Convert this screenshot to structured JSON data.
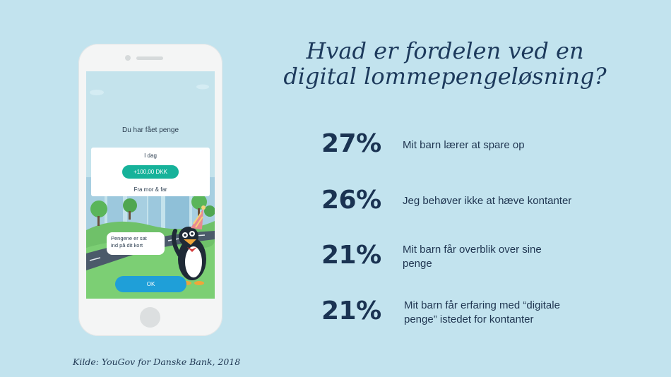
{
  "headline": {
    "line1": "Hvad er fordelen ved en",
    "line2": "digital lommepengeløsning?"
  },
  "phone_screen": {
    "title": "Du har fået penge",
    "card": {
      "date": "I dag",
      "amount": "+100,00 DKK",
      "from": "Fra mor & far"
    },
    "speech_bubble": {
      "line1": "Pengene er sat",
      "line2": "ind på dit kort"
    },
    "ok_button": "OK"
  },
  "stats": [
    {
      "percent": "27%",
      "label_line1": "Mit barn lærer at spare op",
      "label_line2": ""
    },
    {
      "percent": "26%",
      "label_line1": "Jeg behøver ikke at hæve kontanter",
      "label_line2": ""
    },
    {
      "percent": "21%",
      "label_line1": "Mit barn får overblik over sine",
      "label_line2": "penge"
    },
    {
      "percent": "21%",
      "label_line1": "Mit barn får erfaring med “digitale",
      "label_line2": "penge” istedet for kontanter"
    }
  ],
  "source": "Kilde: YouGov for Danske Bank, 2018",
  "colors": {
    "background": "#c2e3ee",
    "headline": "#1d3a5c",
    "accent_green": "#16b29a",
    "ok_blue": "#1f9fd8"
  }
}
